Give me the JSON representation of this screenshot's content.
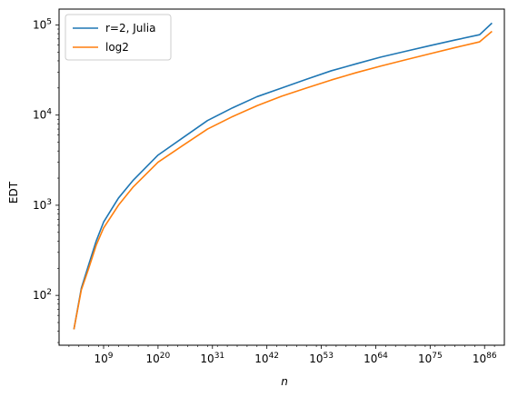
{
  "chart_data": {
    "type": "line",
    "title": "",
    "xlabel": "n",
    "ylabel": "EDT",
    "xscale": "log",
    "yscale": "log",
    "grid": false,
    "legend_position": "top-left",
    "xlim_exponents": [
      0,
      90
    ],
    "ylim": [
      28,
      150000
    ],
    "x_ticks": [
      {
        "exp": 9,
        "base": "10",
        "sup": "9"
      },
      {
        "exp": 20,
        "base": "10",
        "sup": "20"
      },
      {
        "exp": 31,
        "base": "10",
        "sup": "31"
      },
      {
        "exp": 42,
        "base": "10",
        "sup": "42"
      },
      {
        "exp": 53,
        "base": "10",
        "sup": "53"
      },
      {
        "exp": 64,
        "base": "10",
        "sup": "64"
      },
      {
        "exp": 75,
        "base": "10",
        "sup": "75"
      },
      {
        "exp": 86,
        "base": "10",
        "sup": "86"
      }
    ],
    "y_ticks": [
      {
        "value": 100,
        "base": "10",
        "sup": "2"
      },
      {
        "value": 1000,
        "base": "10",
        "sup": "3"
      },
      {
        "value": 10000,
        "base": "10",
        "sup": "4"
      },
      {
        "value": 100000,
        "base": "10",
        "sup": "5"
      }
    ],
    "x_exponents": [
      3,
      4.5,
      6,
      7.5,
      9,
      12,
      15,
      20,
      25,
      30,
      35,
      40,
      45,
      50,
      55,
      60,
      65,
      70,
      75,
      80,
      85,
      87.5
    ],
    "series": [
      {
        "name": "r=2, Julia",
        "color": "#1f77b4",
        "values": [
          42,
          120,
          220,
          400,
          650,
          1200,
          1900,
          3600,
          5600,
          8700,
          12000,
          16000,
          20000,
          25000,
          31000,
          37000,
          44000,
          51000,
          59000,
          68000,
          78000,
          105000
        ]
      },
      {
        "name": "log2",
        "color": "#ff7f0e",
        "values": [
          42,
          115,
          200,
          360,
          560,
          1000,
          1600,
          3000,
          4600,
          7000,
          9600,
          12700,
          16200,
          20000,
          24500,
          29500,
          35000,
          41000,
          48000,
          56000,
          65000,
          85000
        ]
      }
    ]
  }
}
